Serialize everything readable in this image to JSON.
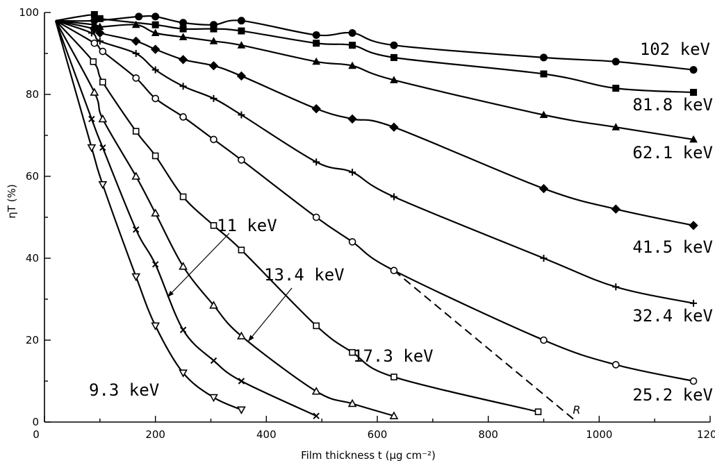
{
  "chart_data": {
    "type": "line",
    "xlabel": "Film  thickness  t (μg cm⁻²)",
    "ylabel": "ηT (%)",
    "xlim": [
      0,
      1200
    ],
    "ylim": [
      0,
      100
    ],
    "xticks": [
      0,
      200,
      400,
      600,
      800,
      1000,
      1200
    ],
    "yticks": [
      0,
      20,
      40,
      60,
      80,
      100
    ],
    "grid": false,
    "legend": "inline labels",
    "series": [
      {
        "name": "102 keV",
        "marker": "filled-circle",
        "x": [
          90,
          170,
          200,
          250,
          305,
          355,
          490,
          555,
          630,
          900,
          1030,
          1170
        ],
        "y": [
          98,
          99,
          99,
          97.5,
          97,
          98,
          94.5,
          95,
          92,
          89,
          88,
          86
        ]
      },
      {
        "name": "81.8 keV",
        "marker": "filled-square",
        "x": [
          90,
          100,
          200,
          250,
          305,
          355,
          490,
          555,
          630,
          900,
          1030,
          1170
        ],
        "y": [
          99.5,
          98.5,
          97,
          96,
          96,
          95.5,
          92.5,
          92,
          89,
          85,
          81.5,
          80.5
        ]
      },
      {
        "name": "62.1 keV",
        "marker": "filled-triangle",
        "x": [
          90,
          100,
          165,
          200,
          250,
          305,
          355,
          490,
          555,
          630,
          900,
          1030,
          1170
        ],
        "y": [
          97,
          96.5,
          97,
          95,
          94,
          93,
          92,
          88,
          87,
          83.5,
          75,
          72,
          69
        ]
      },
      {
        "name": "41.5  keV",
        "marker": "filled-diamond",
        "x": [
          90,
          100,
          165,
          200,
          250,
          305,
          355,
          490,
          555,
          630,
          900,
          1030,
          1170
        ],
        "y": [
          96,
          95,
          93,
          91,
          88.5,
          87,
          84.5,
          76.5,
          74,
          72,
          57,
          52,
          48
        ]
      },
      {
        "name": "32.4 keV",
        "marker": "plus",
        "x": [
          85,
          100,
          165,
          200,
          250,
          305,
          355,
          490,
          555,
          630,
          900,
          1030,
          1170
        ],
        "y": [
          95,
          93,
          90,
          86,
          82,
          79,
          75,
          63.5,
          61,
          55,
          40,
          33,
          29
        ]
      },
      {
        "name": "25.2 keV",
        "marker": "open-circle",
        "x": [
          90,
          105,
          165,
          200,
          250,
          305,
          355,
          490,
          555,
          630,
          900,
          1030,
          1170
        ],
        "y": [
          92.5,
          90.5,
          84,
          79,
          74.5,
          69,
          64,
          50,
          44,
          37,
          20,
          14,
          10
        ]
      },
      {
        "name": "17.3 keV",
        "marker": "open-square",
        "x": [
          88,
          105,
          165,
          200,
          250,
          305,
          355,
          490,
          555,
          630,
          890
        ],
        "y": [
          88,
          83,
          71,
          65,
          55,
          48,
          42,
          23.5,
          17,
          11,
          2.5
        ]
      },
      {
        "name": "13.4 keV",
        "marker": "open-triangle",
        "x": [
          90,
          105,
          165,
          200,
          250,
          305,
          355,
          490,
          555,
          630
        ],
        "y": [
          80.5,
          74,
          60,
          51,
          38,
          28.5,
          21,
          7.5,
          4.5,
          1.5
        ]
      },
      {
        "name": "11 keV",
        "marker": "cross",
        "x": [
          85,
          105,
          165,
          200,
          250,
          305,
          355,
          490
        ],
        "y": [
          74,
          67,
          47,
          38.5,
          22.5,
          15,
          10,
          1.5
        ]
      },
      {
        "name": "9.3 keV",
        "marker": "open-inverted-triangle",
        "x": [
          85,
          105,
          165,
          200,
          250,
          305,
          355
        ],
        "y": [
          67,
          58,
          35.5,
          23.5,
          12,
          6,
          3
        ]
      }
    ],
    "annotations": [
      {
        "label": "R",
        "type": "dashed extrapolation of 25.2 keV curve",
        "x": [
          630,
          960
        ],
        "y": [
          37,
          0
        ]
      }
    ]
  }
}
